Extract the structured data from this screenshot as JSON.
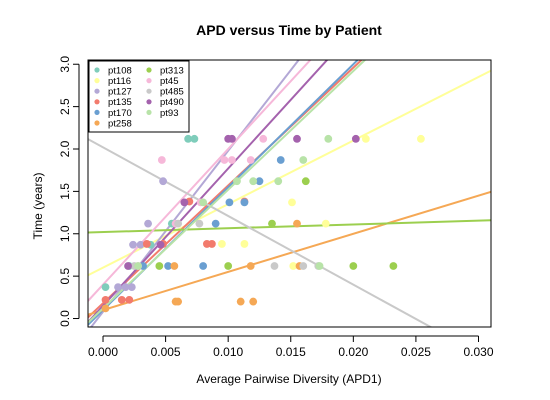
{
  "chart_data": {
    "type": "scatter",
    "title": "APD versus Time by Patient",
    "xlabel": "Average Pairwise Diversity (APD1)",
    "ylabel": "Time (years)",
    "xlim": [
      -0.0012,
      0.031
    ],
    "ylim": [
      -0.1,
      3.05
    ],
    "xticks": [
      0.0,
      0.005,
      0.01,
      0.015,
      0.02,
      0.025,
      0.03
    ],
    "xtick_labels": [
      "0.000",
      "0.005",
      "0.010",
      "0.015",
      "0.020",
      "0.025",
      "0.030"
    ],
    "yticks": [
      0.0,
      0.5,
      1.0,
      1.5,
      2.0,
      2.5,
      3.0
    ],
    "ytick_labels": [
      "0.0",
      "0.5",
      "1.0",
      "1.5",
      "2.0",
      "2.5",
      "3.0"
    ],
    "grid": false,
    "legend_placement": "top-left",
    "has_regression_lines": true,
    "series": [
      {
        "name": "pt108",
        "color": "#7fcdbb",
        "points": [
          [
            0.0002,
            0.37
          ],
          [
            0.0021,
            0.62
          ],
          [
            0.0038,
            0.87
          ],
          [
            0.0055,
            1.12
          ],
          [
            0.0068,
            2.12
          ],
          [
            0.0073,
            2.12
          ]
        ],
        "line": [
          3.06,
          300
        ]
      },
      {
        "name": "pt116",
        "color": "#ffff99",
        "points": [
          [
            0.0095,
            0.88
          ],
          [
            0.0113,
            0.88
          ],
          [
            0.0151,
            1.37
          ],
          [
            0.0152,
            0.62
          ],
          [
            0.0178,
            1.12
          ],
          [
            0.021,
            2.12
          ],
          [
            0.0254,
            2.12
          ]
        ],
        "line": [
          0.6,
          75
        ]
      },
      {
        "name": "pt127",
        "color": "#b3a8d6",
        "points": [
          [
            0.0012,
            0.37
          ],
          [
            0.0018,
            0.37
          ],
          [
            0.0023,
            0.37
          ],
          [
            0.0024,
            0.87
          ],
          [
            0.003,
            0.87
          ],
          [
            0.0036,
            1.12
          ],
          [
            0.0048,
            1.62
          ]
        ],
        "line": [
          0.08,
          190
        ]
      },
      {
        "name": "pt135",
        "color": "#f27b6d",
        "points": [
          [
            0.0002,
            0.22
          ],
          [
            0.0015,
            0.22
          ],
          [
            0.0021,
            0.22
          ],
          [
            0.0035,
            0.88
          ],
          [
            0.0048,
            0.88
          ],
          [
            0.0069,
            1.38
          ],
          [
            0.0083,
            0.88
          ],
          [
            0.0087,
            0.88
          ],
          [
            0.0113,
            1.38
          ]
        ],
        "line": [
          0.18,
          139
        ]
      },
      {
        "name": "pt170",
        "color": "#6a9fd1",
        "points": [
          [
            0.0032,
            0.62
          ],
          [
            0.0052,
            0.62
          ],
          [
            0.008,
            0.62
          ],
          [
            0.009,
            1.12
          ],
          [
            0.0101,
            1.37
          ],
          [
            0.0113,
            1.37
          ],
          [
            0.0125,
            1.62
          ],
          [
            0.0142,
            1.87
          ]
        ],
        "line": [
          0.1,
          145
        ]
      },
      {
        "name": "pt258",
        "color": "#f5a855",
        "points": [
          [
            0.0002,
            0.12
          ],
          [
            0.0058,
            0.2
          ],
          [
            0.006,
            0.2
          ],
          [
            0.011,
            0.2
          ],
          [
            0.012,
            0.2
          ],
          [
            0.0057,
            0.62
          ],
          [
            0.0118,
            0.62
          ],
          [
            0.0155,
            1.12
          ],
          [
            0.0157,
            0.62
          ]
        ],
        "line": [
          0.1,
          45
        ]
      },
      {
        "name": "pt313",
        "color": "#9ccf4f",
        "points": [
          [
            0.0045,
            0.62
          ],
          [
            0.01,
            0.62
          ],
          [
            0.0135,
            1.12
          ],
          [
            0.0162,
            1.62
          ],
          [
            0.02,
            0.62
          ],
          [
            0.0232,
            0.62
          ]
        ],
        "line": [
          1.02,
          4.5
        ]
      },
      {
        "name": "pt45",
        "color": "#f6b8d9",
        "points": [
          [
            0.0028,
            0.62
          ],
          [
            0.0047,
            1.87
          ],
          [
            0.0058,
            1.12
          ],
          [
            0.0078,
            1.37
          ],
          [
            0.0097,
            1.87
          ],
          [
            0.0103,
            1.87
          ],
          [
            0.0118,
            1.87
          ],
          [
            0.0128,
            2.12
          ]
        ],
        "line": [
          0.4,
          160
        ]
      },
      {
        "name": "pt485",
        "color": "#c9c9c9",
        "points": [
          [
            0.0025,
            0.62
          ],
          [
            0.006,
            1.12
          ],
          [
            0.0077,
            1.12
          ],
          [
            0.0137,
            0.62
          ],
          [
            0.016,
            0.62
          ],
          [
            0.0172,
            0.62
          ]
        ],
        "line": [
          2.02,
          -81
        ]
      },
      {
        "name": "pt490",
        "color": "#a462ad",
        "points": [
          [
            0.002,
            0.62
          ],
          [
            0.0046,
            0.87
          ],
          [
            0.0065,
            1.37
          ],
          [
            0.01,
            2.12
          ],
          [
            0.0103,
            2.12
          ],
          [
            0.0155,
            2.12
          ],
          [
            0.0202,
            2.12
          ]
        ],
        "line": [
          0.15,
          162
        ]
      },
      {
        "name": "pt93",
        "color": "#b8e3a8",
        "points": [
          [
            0.0028,
            0.62
          ],
          [
            0.008,
            1.37
          ],
          [
            0.0107,
            1.62
          ],
          [
            0.012,
            1.62
          ],
          [
            0.014,
            1.62
          ],
          [
            0.016,
            1.87
          ],
          [
            0.0173,
            0.62
          ],
          [
            0.018,
            2.12
          ]
        ],
        "line": [
          0.12,
          140
        ]
      }
    ]
  }
}
